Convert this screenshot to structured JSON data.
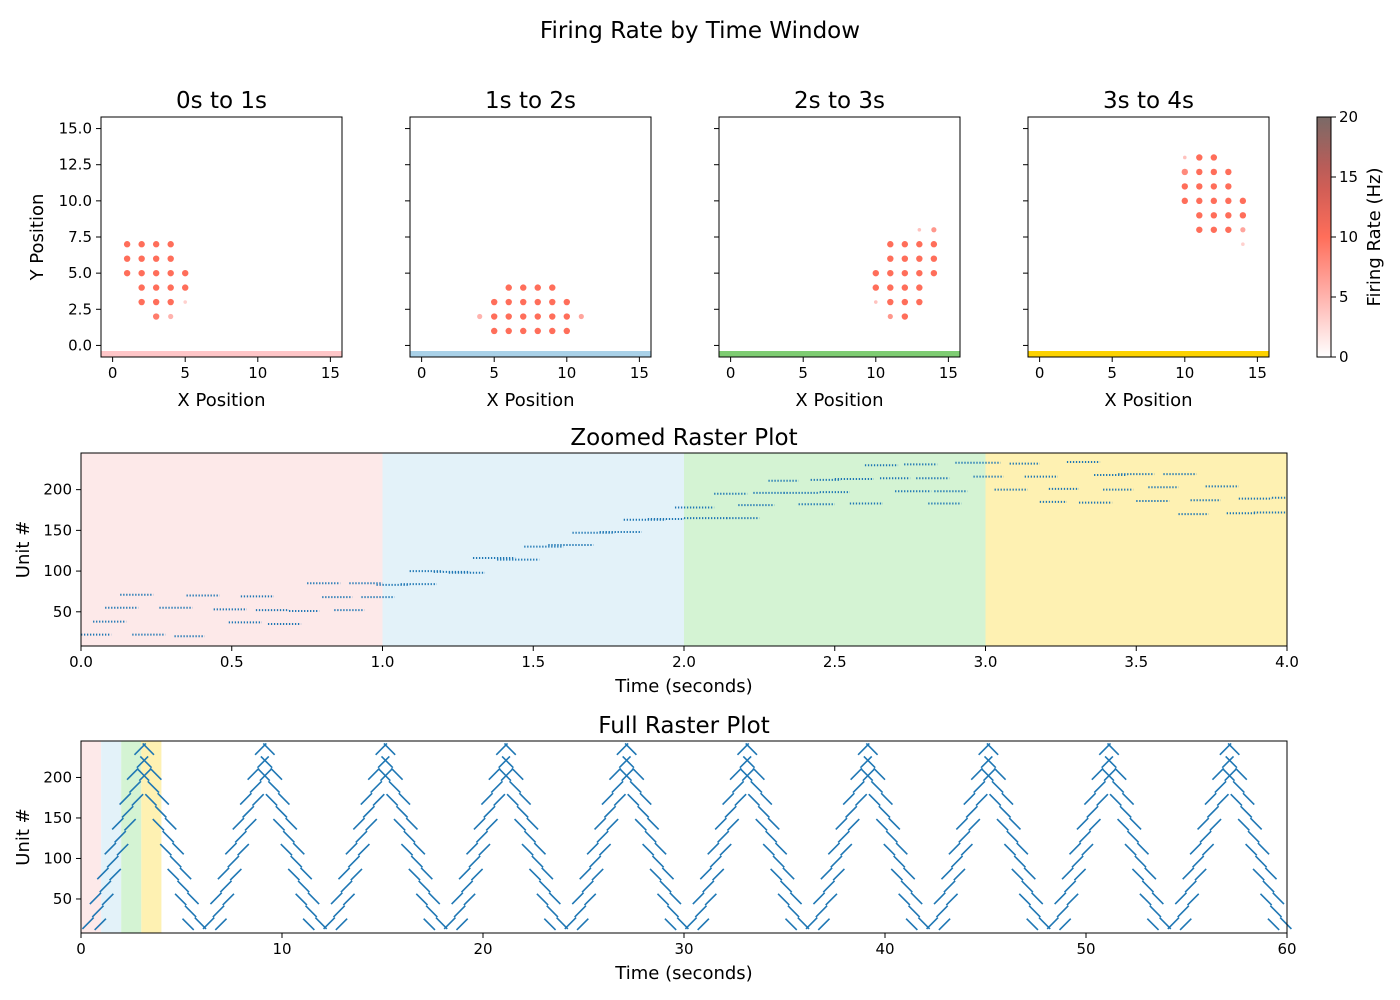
{
  "title": "Firing Rate by Time Window",
  "colors": {
    "raster_dot": "#1f77b4",
    "frame": "#000000",
    "rate_cmap": [
      "#ffffff",
      "#ffb3ae",
      "#ff6e5a",
      "#c65a55",
      "#7a6a67"
    ]
  },
  "chart_data": [
    {
      "type": "scatter",
      "title": "0s to 1s",
      "xlabel": "X Position",
      "ylabel": "Y Position",
      "xlim": [
        -0.8,
        15.8
      ],
      "ylim": [
        15.8,
        -0.8
      ],
      "xticks": [
        0,
        5,
        10,
        15
      ],
      "yticks": [
        0.0,
        2.5,
        5.0,
        7.5,
        10.0,
        12.5,
        15.0
      ],
      "ytick_labels": [
        "0.0",
        "2.5",
        "5.0",
        "7.5",
        "10.0",
        "12.5",
        "15.0"
      ],
      "window_color": "#ffc6c8",
      "points": [
        [
          3,
          2,
          9
        ],
        [
          4,
          2,
          5
        ],
        [
          2,
          3,
          10
        ],
        [
          3,
          3,
          10
        ],
        [
          4,
          3,
          10
        ],
        [
          5,
          3,
          3
        ],
        [
          2,
          4,
          10
        ],
        [
          3,
          4,
          10
        ],
        [
          4,
          4,
          10
        ],
        [
          5,
          4,
          10
        ],
        [
          1,
          5,
          10
        ],
        [
          2,
          5,
          10
        ],
        [
          3,
          5,
          10
        ],
        [
          4,
          5,
          10
        ],
        [
          5,
          5,
          10
        ],
        [
          1,
          6,
          10
        ],
        [
          2,
          6,
          10
        ],
        [
          3,
          6,
          10
        ],
        [
          4,
          6,
          10
        ],
        [
          1,
          7,
          10
        ],
        [
          2,
          7,
          10
        ],
        [
          3,
          7,
          10
        ],
        [
          4,
          7,
          10
        ]
      ]
    },
    {
      "type": "scatter",
      "title": "1s to 2s",
      "xlabel": "X Position",
      "ylabel": "",
      "xlim": [
        -0.8,
        15.8
      ],
      "ylim": [
        15.8,
        -0.8
      ],
      "xticks": [
        0,
        5,
        10,
        15
      ],
      "yticks": [
        0.0,
        2.5,
        5.0,
        7.5,
        10.0,
        12.5,
        15.0
      ],
      "window_color": "#a9d1e8",
      "points": [
        [
          5,
          1,
          10
        ],
        [
          6,
          1,
          10
        ],
        [
          7,
          1,
          10
        ],
        [
          8,
          1,
          10
        ],
        [
          9,
          1,
          10
        ],
        [
          10,
          1,
          10
        ],
        [
          4,
          2,
          5
        ],
        [
          5,
          2,
          10
        ],
        [
          6,
          2,
          10
        ],
        [
          7,
          2,
          10
        ],
        [
          8,
          2,
          10
        ],
        [
          9,
          2,
          10
        ],
        [
          10,
          2,
          10
        ],
        [
          11,
          2,
          6
        ],
        [
          5,
          3,
          10
        ],
        [
          6,
          3,
          10
        ],
        [
          7,
          3,
          10
        ],
        [
          8,
          3,
          10
        ],
        [
          9,
          3,
          10
        ],
        [
          10,
          3,
          10
        ],
        [
          6,
          4,
          10
        ],
        [
          7,
          4,
          10
        ],
        [
          8,
          4,
          10
        ],
        [
          9,
          4,
          10
        ]
      ]
    },
    {
      "type": "scatter",
      "title": "2s to 3s",
      "xlabel": "X Position",
      "ylabel": "",
      "xlim": [
        -0.8,
        15.8
      ],
      "ylim": [
        15.8,
        -0.8
      ],
      "xticks": [
        0,
        5,
        10,
        15
      ],
      "yticks": [
        0.0,
        2.5,
        5.0,
        7.5,
        10.0,
        12.5,
        15.0
      ],
      "window_color": "#7ecc72",
      "points": [
        [
          11,
          2,
          7
        ],
        [
          12,
          2,
          10
        ],
        [
          10,
          3,
          4
        ],
        [
          11,
          3,
          10
        ],
        [
          12,
          3,
          10
        ],
        [
          13,
          3,
          10
        ],
        [
          10,
          4,
          10
        ],
        [
          11,
          4,
          10
        ],
        [
          12,
          4,
          10
        ],
        [
          13,
          4,
          10
        ],
        [
          10,
          5,
          10
        ],
        [
          11,
          5,
          10
        ],
        [
          12,
          5,
          10
        ],
        [
          13,
          5,
          10
        ],
        [
          14,
          5,
          10
        ],
        [
          11,
          6,
          10
        ],
        [
          12,
          6,
          10
        ],
        [
          13,
          6,
          10
        ],
        [
          14,
          6,
          10
        ],
        [
          11,
          7,
          10
        ],
        [
          12,
          7,
          10
        ],
        [
          13,
          7,
          10
        ],
        [
          14,
          7,
          10
        ],
        [
          13,
          8,
          4
        ],
        [
          14,
          8,
          7
        ]
      ]
    },
    {
      "type": "scatter",
      "title": "3s to 4s",
      "xlabel": "X Position",
      "ylabel": "",
      "xlim": [
        -0.8,
        15.8
      ],
      "ylim": [
        15.8,
        -0.8
      ],
      "xticks": [
        0,
        5,
        10,
        15
      ],
      "yticks": [
        0.0,
        2.5,
        5.0,
        7.5,
        10.0,
        12.5,
        15.0
      ],
      "window_color": "#fcd200",
      "points": [
        [
          14,
          7,
          3
        ],
        [
          11,
          8,
          10
        ],
        [
          12,
          8,
          10
        ],
        [
          13,
          8,
          10
        ],
        [
          14,
          8,
          6
        ],
        [
          11,
          9,
          10
        ],
        [
          12,
          9,
          10
        ],
        [
          13,
          9,
          10
        ],
        [
          14,
          9,
          10
        ],
        [
          10,
          10,
          10
        ],
        [
          11,
          10,
          10
        ],
        [
          12,
          10,
          10
        ],
        [
          13,
          10,
          10
        ],
        [
          14,
          10,
          10
        ],
        [
          10,
          11,
          10
        ],
        [
          11,
          11,
          10
        ],
        [
          12,
          11,
          10
        ],
        [
          13,
          11,
          10
        ],
        [
          10,
          12,
          8
        ],
        [
          11,
          12,
          10
        ],
        [
          12,
          12,
          10
        ],
        [
          13,
          12,
          10
        ],
        [
          10,
          13,
          4
        ],
        [
          11,
          13,
          10
        ],
        [
          12,
          13,
          10
        ]
      ]
    },
    {
      "type": "colorbar",
      "label": "Firing Rate (Hz)",
      "range": [
        0,
        20
      ],
      "ticks": [
        0,
        5,
        10,
        15,
        20
      ]
    },
    {
      "type": "scatter",
      "title": "Zoomed Raster Plot",
      "xlabel": "Time (seconds)",
      "ylabel": "Unit #",
      "xlim": [
        0,
        4
      ],
      "ylim": [
        8,
        245
      ],
      "xticks": [
        0.0,
        0.5,
        1.0,
        1.5,
        2.0,
        2.5,
        3.0,
        3.5,
        4.0
      ],
      "xtick_labels": [
        "0.0",
        "0.5",
        "1.0",
        "1.5",
        "2.0",
        "2.5",
        "3.0",
        "3.5",
        "4.0"
      ],
      "yticks": [
        50,
        100,
        150,
        200
      ],
      "windows": [
        {
          "from": 0,
          "to": 1,
          "color": "#fde9e9"
        },
        {
          "from": 1,
          "to": 2,
          "color": "#e3f2f9"
        },
        {
          "from": 2,
          "to": 3,
          "color": "#d4f3d3"
        },
        {
          "from": 3,
          "to": 4,
          "color": "#fef1b2"
        }
      ],
      "segments": [
        [
          0.0,
          0.1,
          22
        ],
        [
          0.04,
          0.15,
          38
        ],
        [
          0.08,
          0.19,
          55
        ],
        [
          0.13,
          0.24,
          71
        ],
        [
          0.17,
          0.28,
          22
        ],
        [
          0.26,
          0.37,
          55
        ],
        [
          0.31,
          0.41,
          20
        ],
        [
          0.35,
          0.46,
          70
        ],
        [
          0.44,
          0.55,
          53
        ],
        [
          0.49,
          0.6,
          37
        ],
        [
          0.53,
          0.64,
          69
        ],
        [
          0.58,
          0.69,
          52
        ],
        [
          0.62,
          0.73,
          35
        ],
        [
          0.69,
          0.79,
          51
        ],
        [
          0.75,
          0.86,
          85
        ],
        [
          0.8,
          0.9,
          68
        ],
        [
          0.84,
          0.94,
          52
        ],
        [
          0.89,
          1.0,
          85
        ],
        [
          0.93,
          1.04,
          68
        ],
        [
          0.98,
          1.09,
          83
        ],
        [
          1.06,
          1.18,
          84
        ],
        [
          1.09,
          1.2,
          100
        ],
        [
          1.17,
          1.29,
          99
        ],
        [
          1.22,
          1.34,
          98
        ],
        [
          1.3,
          1.44,
          116
        ],
        [
          1.38,
          1.52,
          114
        ],
        [
          1.47,
          1.6,
          130
        ],
        [
          1.55,
          1.7,
          132
        ],
        [
          1.63,
          1.77,
          147
        ],
        [
          1.72,
          1.86,
          148
        ],
        [
          1.8,
          1.94,
          163
        ],
        [
          1.88,
          2.0,
          164
        ],
        [
          1.97,
          2.1,
          178
        ],
        [
          2.0,
          2.15,
          165
        ],
        [
          2.1,
          2.21,
          195
        ],
        [
          2.14,
          2.25,
          165
        ],
        [
          2.18,
          2.3,
          181
        ],
        [
          2.23,
          2.34,
          196
        ],
        [
          2.28,
          2.38,
          211
        ],
        [
          2.33,
          2.45,
          196
        ],
        [
          2.38,
          2.5,
          182
        ],
        [
          2.42,
          2.52,
          212
        ],
        [
          2.45,
          2.55,
          197
        ],
        [
          2.5,
          2.63,
          213
        ],
        [
          2.55,
          2.66,
          183
        ],
        [
          2.6,
          2.71,
          230
        ],
        [
          2.65,
          2.75,
          214
        ],
        [
          2.7,
          2.82,
          198
        ],
        [
          2.73,
          2.84,
          231
        ],
        [
          2.77,
          2.88,
          214
        ],
        [
          2.81,
          2.92,
          183
        ],
        [
          2.83,
          2.94,
          198
        ],
        [
          2.9,
          3.05,
          233
        ],
        [
          2.96,
          3.06,
          216
        ],
        [
          3.03,
          3.14,
          200
        ],
        [
          3.08,
          3.18,
          232
        ],
        [
          3.13,
          3.24,
          216
        ],
        [
          3.18,
          3.27,
          185
        ],
        [
          3.21,
          3.31,
          201
        ],
        [
          3.27,
          3.38,
          234
        ],
        [
          3.31,
          3.42,
          184
        ],
        [
          3.36,
          3.47,
          218
        ],
        [
          3.39,
          3.49,
          200
        ],
        [
          3.44,
          3.56,
          219
        ],
        [
          3.5,
          3.61,
          186
        ],
        [
          3.54,
          3.64,
          203
        ],
        [
          3.59,
          3.7,
          219
        ],
        [
          3.64,
          3.74,
          170
        ],
        [
          3.68,
          3.78,
          187
        ],
        [
          3.73,
          3.84,
          204
        ],
        [
          3.8,
          3.9,
          171
        ],
        [
          3.84,
          3.95,
          189
        ],
        [
          3.89,
          4.0,
          172
        ],
        [
          3.95,
          4.0,
          190
        ]
      ]
    },
    {
      "type": "scatter",
      "title": "Full Raster Plot",
      "xlabel": "Time (seconds)",
      "ylabel": "Unit #",
      "xlim": [
        0,
        60
      ],
      "ylim": [
        8,
        245
      ],
      "xticks": [
        0,
        10,
        20,
        30,
        40,
        50,
        60
      ],
      "yticks": [
        50,
        100,
        150,
        200
      ],
      "windows": [
        {
          "from": 0,
          "to": 1,
          "color": "#fde9e9"
        },
        {
          "from": 1,
          "to": 2,
          "color": "#e3f2f9"
        },
        {
          "from": 2,
          "to": 3,
          "color": "#d4f3d3"
        },
        {
          "from": 3,
          "to": 4,
          "color": "#fef1b2"
        }
      ],
      "pattern": {
        "period": 6.0,
        "cycles": 10,
        "min_unit": 20,
        "max_unit": 235
      }
    }
  ]
}
